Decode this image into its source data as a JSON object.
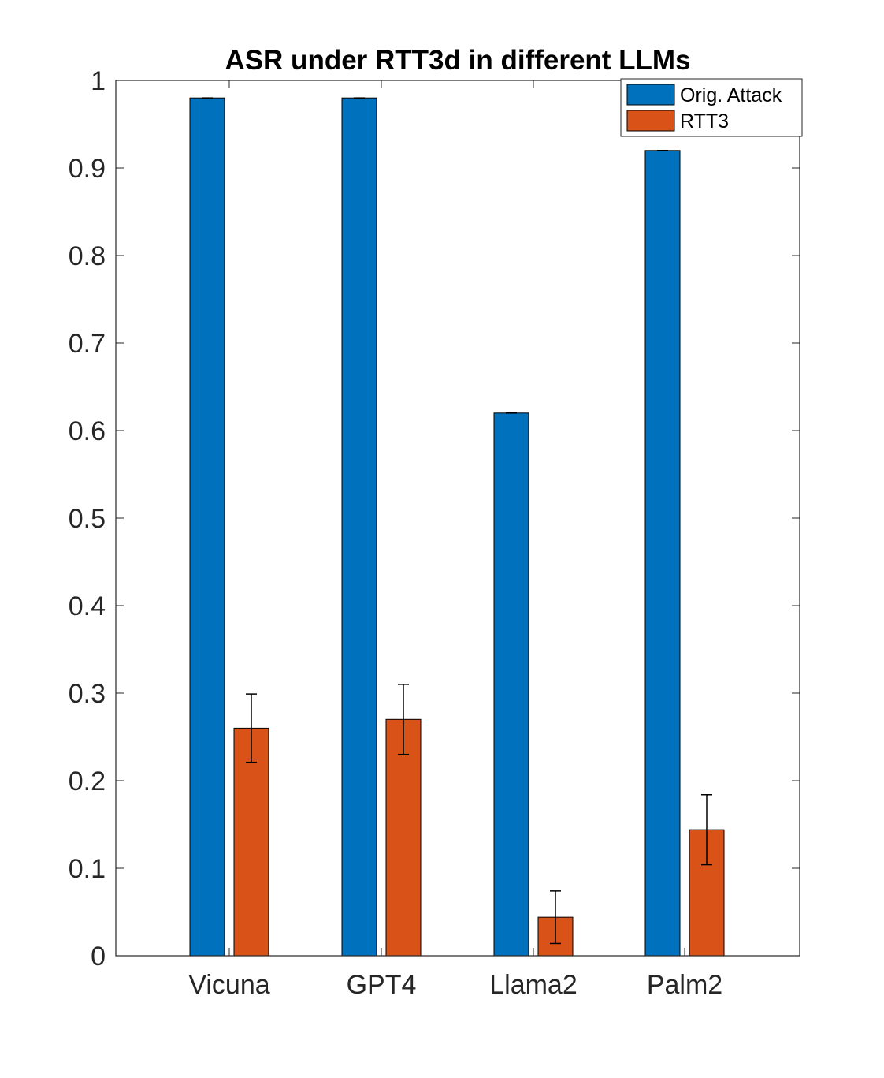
{
  "chart_data": {
    "type": "bar",
    "title": "ASR under RTT3d in different LLMs",
    "xlabel": "",
    "ylabel": "",
    "categories": [
      "Vicuna",
      "GPT4",
      "Llama2",
      "Palm2"
    ],
    "ylim": [
      0,
      1
    ],
    "yticks": [
      0,
      0.1,
      0.2,
      0.3,
      0.4,
      0.5,
      0.6,
      0.7,
      0.8,
      0.9,
      1
    ],
    "ytick_labels": [
      "0",
      "0.1",
      "0.2",
      "0.3",
      "0.4",
      "0.5",
      "0.6",
      "0.7",
      "0.8",
      "0.9",
      "1"
    ],
    "grid": false,
    "legend_position": "top-right",
    "series": [
      {
        "name": "Orig. Attack",
        "color": "#0072bd",
        "values": [
          0.98,
          0.98,
          0.62,
          0.92
        ],
        "error": [
          0,
          0,
          0,
          0
        ]
      },
      {
        "name": "RTT3",
        "color": "#d95319",
        "values": [
          0.26,
          0.27,
          0.044,
          0.144
        ],
        "error": [
          0.039,
          0.04,
          0.03,
          0.04
        ]
      }
    ]
  }
}
